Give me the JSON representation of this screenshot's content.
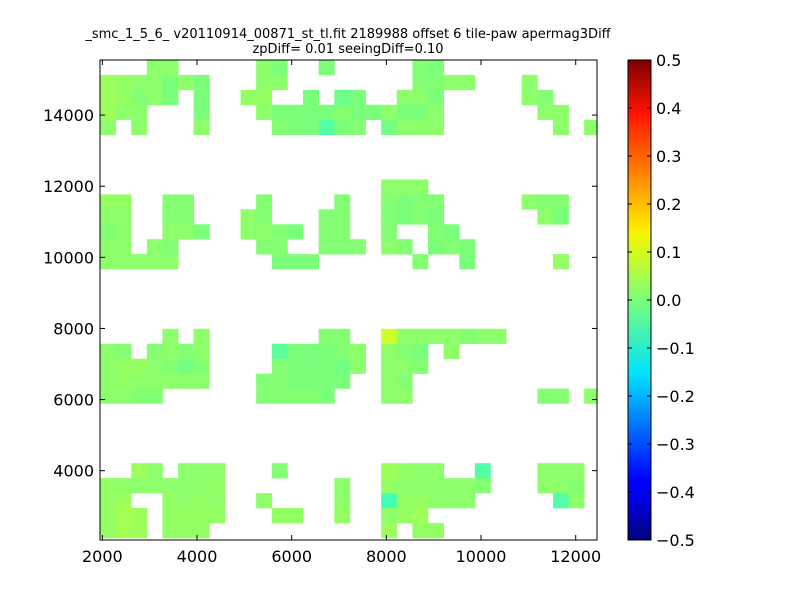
{
  "chart_data": {
    "type": "heatmap",
    "title": "_smc_1_5_6_ v20110914_00871_st_tl.fit 2189988 offset 6 tile-paw apermag3Diff",
    "subtitle": "zpDiff= 0.01 seeingDiff=0.10",
    "xlabel": "",
    "ylabel": "",
    "xlim": [
      1950,
      12450
    ],
    "ylim": [
      2050,
      15550
    ],
    "x_ticks": [
      2000,
      4000,
      6000,
      8000,
      10000,
      12000
    ],
    "y_ticks": [
      4000,
      6000,
      8000,
      10000,
      12000,
      14000
    ],
    "x_tick_labels": [
      "2000",
      "4000",
      "6000",
      "8000",
      "10000",
      "12000"
    ],
    "y_tick_labels": [
      "4000",
      "6000",
      "8000",
      "10000",
      "12000",
      "14000"
    ],
    "colorscale": "jet",
    "color_range": [
      -0.5,
      0.5
    ],
    "colorbar_ticks": [
      0.5,
      0.4,
      0.3,
      0.2,
      0.1,
      0.0,
      -0.1,
      -0.2,
      -0.3,
      -0.4,
      -0.5
    ],
    "colorbar_tick_labels": [
      "0.5",
      "0.4",
      "0.3",
      "0.2",
      "0.1",
      "0.0",
      "−0.1",
      "−0.2",
      "−0.3",
      "−0.4",
      "−0.5"
    ],
    "bin_size": [
      330,
      420
    ],
    "grid": false,
    "legend": "colorbar-right",
    "x_bins": [
      2115,
      2445,
      2775,
      3105,
      3435,
      3765,
      4095,
      4425,
      4755,
      5085,
      5415,
      5745,
      6075,
      6405,
      6735,
      7065,
      7395,
      7725,
      8055,
      8385,
      8715,
      9045,
      9375,
      9705,
      10035,
      10365,
      10695,
      11025,
      11355,
      11685,
      12015,
      12345
    ],
    "y_bins": [
      15340,
      14920,
      14500,
      14080,
      13660,
      11980,
      11560,
      11140,
      10720,
      10300,
      9880,
      7780,
      7360,
      6940,
      6520,
      6100,
      4000,
      3580,
      3160,
      2740,
      2320
    ],
    "cells": [
      [
        "",
        "",
        "",
        "0.02",
        "0.02",
        "",
        "",
        "",
        "",
        "",
        "0.02",
        "0.0",
        "",
        "",
        "0.0",
        "",
        "",
        "",
        "",
        "",
        "0.01",
        "0.0",
        "",
        "",
        "",
        "",
        "",
        "",
        "",
        "",
        "",
        ""
      ],
      [
        "0.04",
        "0.03",
        "0.02",
        "0.02",
        "0.0",
        "0.02",
        "0.0",
        "",
        "",
        "",
        "0.02",
        "0.02",
        "",
        "",
        "",
        "",
        "",
        "",
        "",
        "",
        "0.01",
        "0.01",
        "0.02",
        "0.02",
        "",
        "",
        "",
        "0.02",
        "",
        "",
        "",
        ""
      ],
      [
        "0.04",
        "0.03",
        "0.01",
        "0.02",
        "0.0",
        "",
        "0.0",
        "",
        "",
        "0.03",
        "0.03",
        "",
        "",
        "0.0",
        "",
        "-0.02",
        "0.0",
        "",
        "",
        "0.02",
        "0.02",
        "0.0",
        "",
        "",
        "",
        "",
        "",
        "0.02",
        "0.01",
        "",
        "",
        ""
      ],
      [
        "0.04",
        "0.02",
        "0.02",
        "",
        "",
        "",
        "0.0",
        "",
        "",
        "",
        "0.02",
        "0.0",
        "0.0",
        "0.0",
        "0.0",
        "0.01",
        "0.0",
        "0.0",
        "0.02",
        "0.0",
        "0.0",
        "0.02",
        "",
        "",
        "",
        "",
        "",
        "",
        "0.02",
        "0.02",
        "",
        ""
      ],
      [
        "0.02",
        "",
        "0.02",
        "",
        "",
        "",
        "0.02",
        "",
        "",
        "",
        "",
        "0.01",
        "0.0",
        "0.0",
        "-0.05",
        "0.0",
        "0.01",
        "",
        "-0.01",
        "0.02",
        "0.02",
        "0.02",
        "",
        "",
        "",
        "",
        "",
        "",
        "",
        "0.02",
        "",
        "0.02"
      ],
      [
        "",
        "",
        "",
        "",
        "",
        "",
        "",
        "",
        "",
        "",
        "",
        "",
        "",
        "",
        "",
        "",
        "",
        "",
        "0.02",
        "0.02",
        "0.02",
        "",
        "",
        "",
        "",
        "",
        "",
        "",
        "",
        "",
        "",
        ""
      ],
      [
        "0.03",
        "0.03",
        "",
        "",
        "0.01",
        "0.01",
        "",
        "",
        "",
        "",
        "0.01",
        "",
        "",
        "",
        "",
        "0.01",
        "",
        "",
        "0.01",
        "0.0",
        "0.01",
        "0.01",
        "",
        "",
        "",
        "",
        "",
        "0.02",
        "0.01",
        "0.01",
        "",
        ""
      ],
      [
        "0.02",
        "0.02",
        "",
        "",
        "0.01",
        "0.01",
        "",
        "",
        "",
        "0.02",
        "0.01",
        "",
        "",
        "",
        "0.01",
        "0.01",
        "",
        "",
        "0.01",
        "0.0",
        "0.01",
        "0.0",
        "",
        "",
        "",
        "",
        "",
        "",
        "0.02",
        "0.0",
        "",
        ""
      ],
      [
        "0.01",
        "0.02",
        "",
        "",
        "0.02",
        "0.02",
        "0.0",
        "",
        "",
        "0.02",
        "0.02",
        "0.01",
        "0.0",
        "",
        "0.01",
        "0.01",
        "",
        "",
        "0.01",
        "",
        "",
        "0.01",
        "0.0",
        "",
        "",
        "",
        "",
        "",
        "",
        "",
        "",
        ""
      ],
      [
        "0.02",
        "0.02",
        "",
        "0.02",
        "0.01",
        "",
        "",
        "",
        "",
        "",
        "0.01",
        "0.01",
        "",
        "",
        "0.01",
        "0.01",
        "0.01",
        "",
        "0.02",
        "0.01",
        "",
        "0.0",
        "0.01",
        "0.0",
        "",
        "",
        "",
        "",
        "",
        "",
        "",
        ""
      ],
      [
        "0.02",
        "0.02",
        "0.02",
        "0.02",
        "0.02",
        "",
        "",
        "",
        "",
        "",
        "",
        "0.0",
        "0.0",
        "0.0",
        "",
        "",
        "",
        "",
        "",
        "",
        "0.01",
        "",
        "",
        "0.0",
        "",
        "",
        "",
        "",
        "",
        "0.03",
        "",
        ""
      ],
      [
        "",
        "",
        "",
        "",
        "0.02",
        "",
        "0.02",
        "",
        "",
        "",
        "",
        "",
        "",
        "",
        "0.01",
        "0.01",
        "",
        "",
        "0.1",
        "0.02",
        "0.02",
        "0.02",
        "0.02",
        "0.01",
        "0.02",
        "0.02",
        "",
        "",
        "",
        "",
        "",
        ""
      ],
      [
        "0.02",
        "0.01",
        "",
        "0.01",
        "0.02",
        "0.01",
        "0.02",
        "",
        "",
        "",
        "",
        "-0.04",
        "0.0",
        "0.0",
        "0.0",
        "0.01",
        "0.02",
        "",
        "0.02",
        "0.01",
        "0.0",
        "",
        "0.02",
        "",
        "",
        "",
        "",
        "",
        "",
        "",
        "",
        ""
      ],
      [
        "0.02",
        "0.03",
        "0.03",
        "0.02",
        "0.01",
        "-0.01",
        "0.01",
        "",
        "",
        "",
        "",
        "0.01",
        "0.0",
        "0.0",
        "0.0",
        "-0.01",
        "0.02",
        "",
        "0.02",
        "0.02",
        "0.01",
        "",
        "",
        "",
        "",
        "",
        "",
        "",
        "",
        "",
        "",
        ""
      ],
      [
        "0.02",
        "0.03",
        "0.02",
        "0.02",
        "0.02",
        "0.02",
        "0.02",
        "",
        "",
        "",
        "0.01",
        "0.01",
        "0.0",
        "0.0",
        "0.0",
        "0.0",
        "",
        "",
        "0.02",
        "0.01",
        "",
        "",
        "",
        "",
        "",
        "",
        "",
        "",
        "",
        "",
        "",
        ""
      ],
      [
        "0.02",
        "0.02",
        "0.01",
        "0.01",
        "",
        "",
        "",
        "",
        "",
        "",
        "0.01",
        "0.01",
        "0.01",
        "0.01",
        "0.0",
        "",
        "",
        "",
        "0.02",
        "0.02",
        "",
        "",
        "",
        "",
        "",
        "",
        "",
        "",
        "0.01",
        "0.01",
        "",
        "0.02"
      ],
      [
        "",
        "",
        "0.04",
        "0.02",
        "",
        "0.02",
        "0.02",
        "0.02",
        "",
        "",
        "",
        "0.01",
        "",
        "",
        "",
        "",
        "",
        "",
        "0.04",
        "0.03",
        "0.02",
        "0.02",
        "",
        "",
        "-0.05",
        "",
        "",
        "",
        "0.02",
        "0.02",
        "0.02",
        ""
      ],
      [
        "0.03",
        "0.02",
        "0.02",
        "0.02",
        "0.02",
        "0.02",
        "0.02",
        "0.03",
        "",
        "",
        "",
        "",
        "",
        "",
        "",
        "0.02",
        "",
        "",
        "0.03",
        "0.02",
        "0.02",
        "0.02",
        "0.02",
        "0.02",
        "0.01",
        "",
        "",
        "",
        "0.02",
        "0.02",
        "0.01",
        ""
      ],
      [
        "0.03",
        "0.04",
        "",
        "",
        "0.03",
        "0.02",
        "0.03",
        "0.02",
        "",
        "",
        "0.02",
        "",
        "",
        "",
        "",
        "0.02",
        "",
        "",
        "-0.07",
        "0.03",
        "0.03",
        "0.02",
        "0.02",
        "0.02",
        "",
        "",
        "",
        "",
        "",
        "-0.05",
        "0.02",
        ""
      ],
      [
        "0.03",
        "0.05",
        "0.04",
        "",
        "0.03",
        "0.03",
        "0.03",
        "0.03",
        "",
        "",
        "",
        "0.03",
        "0.03",
        "",
        "",
        "0.03",
        "",
        "",
        "0.02",
        "0.03",
        "0.04",
        "",
        "",
        "",
        "",
        "",
        "",
        "",
        "",
        "",
        "",
        ""
      ],
      [
        "0.03",
        "0.05",
        "0.04",
        "",
        "0.03",
        "0.03",
        "0.03",
        "",
        "",
        "",
        "",
        "",
        "",
        "",
        "",
        "",
        "",
        "",
        "0.04",
        "",
        "0.03",
        "0.03",
        "",
        "",
        "",
        "",
        "",
        "",
        "",
        "",
        "",
        ""
      ]
    ]
  }
}
